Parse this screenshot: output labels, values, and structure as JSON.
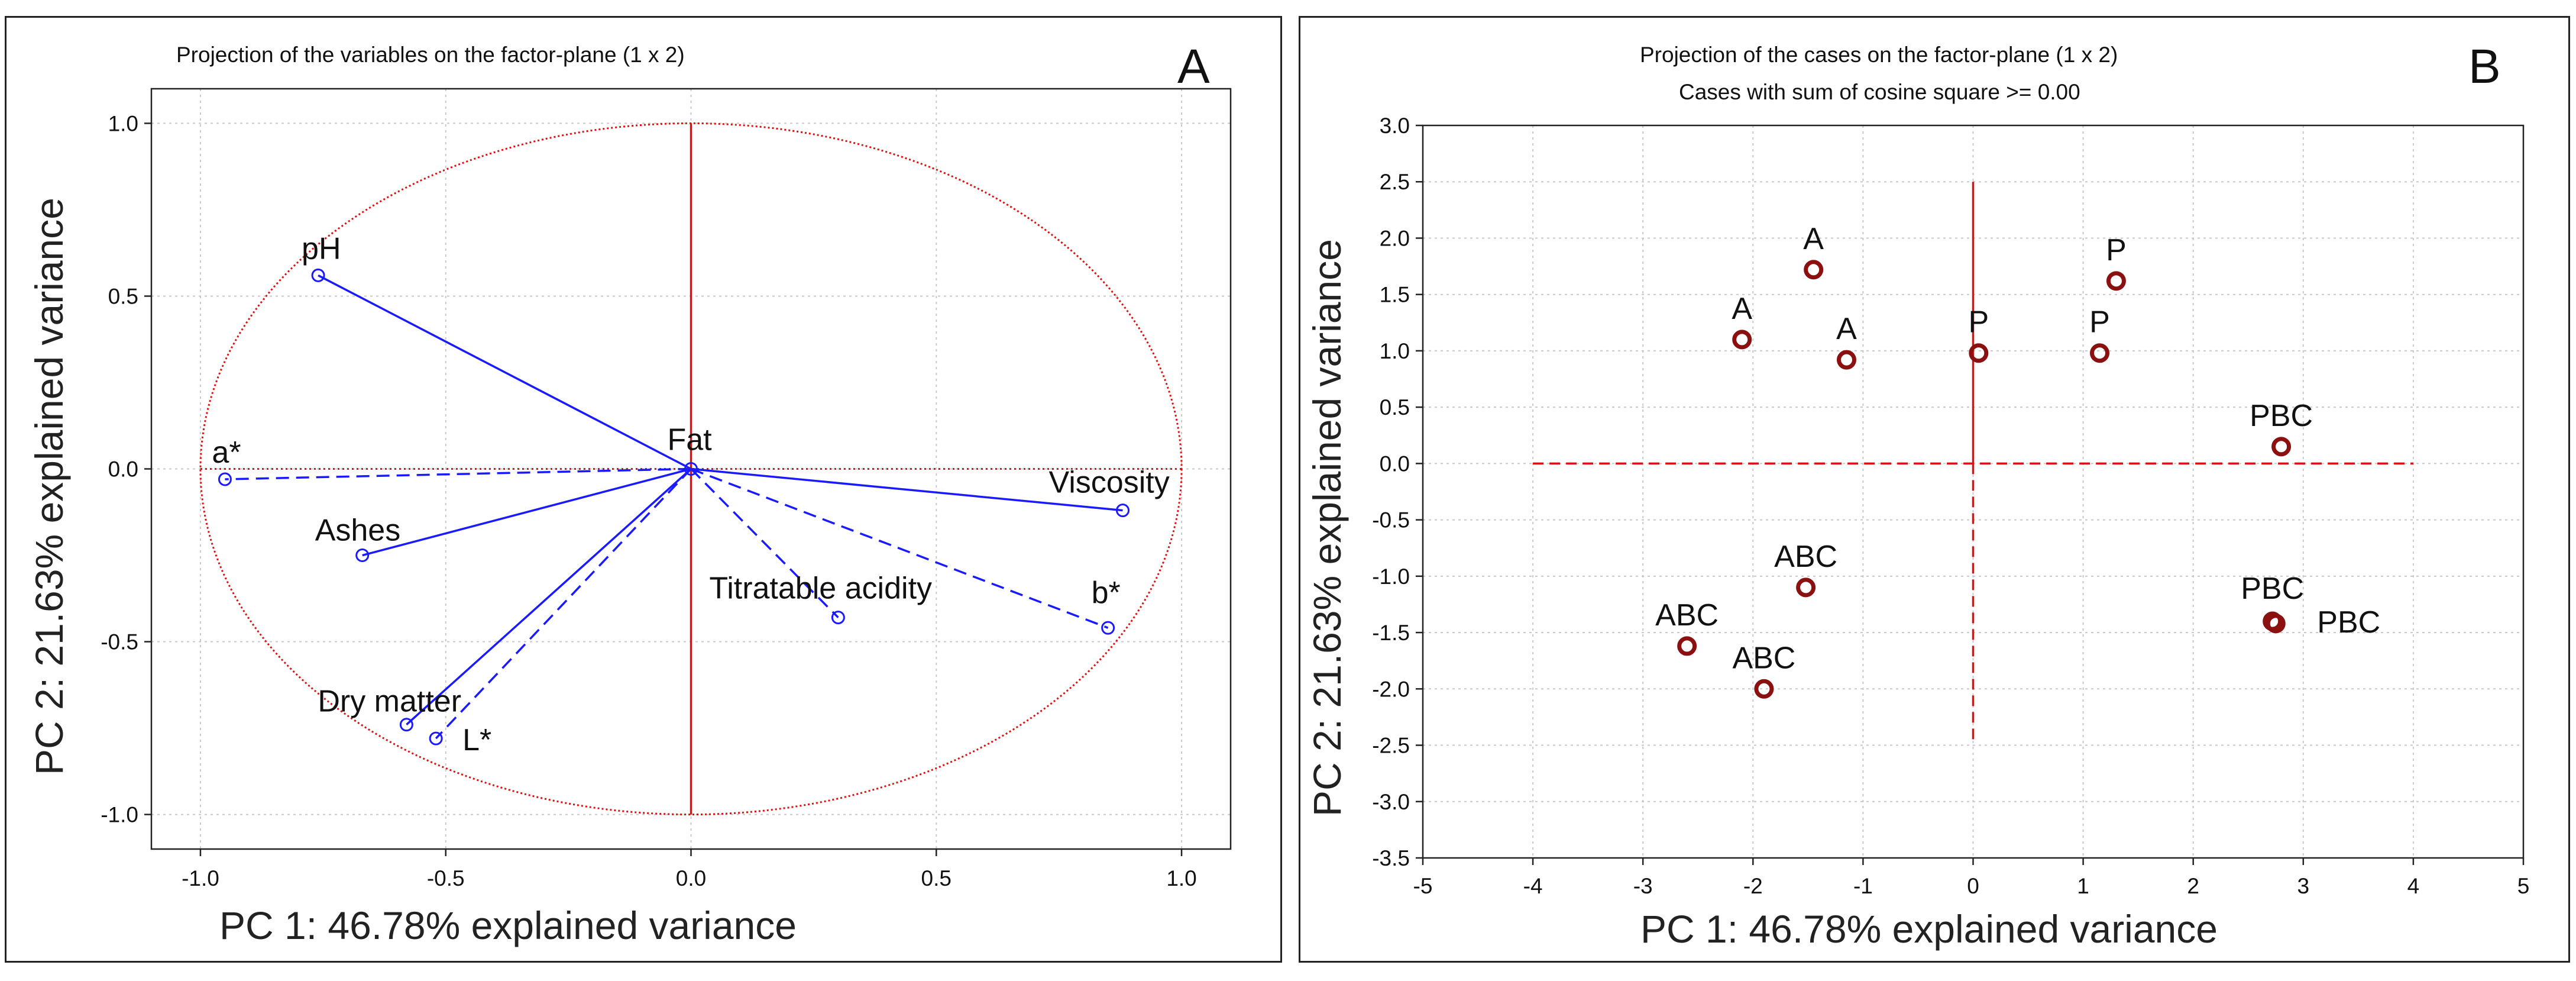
{
  "panels": {
    "A": {
      "letter": "A",
      "title": "Projection of the variables on the factor-plane (1 x 2)",
      "xlabel": "PC 1: 46.78% explained variance",
      "ylabel": "PC 2: 21.63% explained variance"
    },
    "B": {
      "letter": "B",
      "title": "Projection of the cases on the factor-plane (1 x 2)",
      "subtitle": "Cases with sum of cosine square >=  0.00",
      "xlabel": "PC 1: 46.78% explained variance",
      "ylabel": "PC 2: 21.63% explained variance"
    }
  },
  "chart_data": [
    {
      "type": "scatter",
      "id": "A",
      "title": "Projection of the variables on the factor-plane (1 x 2)",
      "xlabel": "PC 1: 46.78% explained variance",
      "ylabel": "PC 2: 21.63% explained variance",
      "xlim": [
        -1.1,
        1.1
      ],
      "ylim": [
        -1.1,
        1.1
      ],
      "xticks": [
        "-1.0",
        "-0.5",
        "0.0",
        "0.5",
        "1.0"
      ],
      "yticks": [
        "1.0",
        "0.5",
        "0.0",
        "-0.5",
        "-1.0"
      ],
      "grid": true,
      "unit_circle": true,
      "line_color": "#1a1aff",
      "circle_color": "#e01010",
      "variables": [
        {
          "name": "pH",
          "x": -0.76,
          "y": 0.56,
          "line": "solid"
        },
        {
          "name": "a*",
          "x": -0.95,
          "y": -0.03,
          "line": "dashed"
        },
        {
          "name": "Fat",
          "x": 0.0,
          "y": 0.0,
          "line": "none"
        },
        {
          "name": "Viscosity",
          "x": 0.88,
          "y": -0.12,
          "line": "solid"
        },
        {
          "name": "Ashes",
          "x": -0.67,
          "y": -0.25,
          "line": "solid"
        },
        {
          "name": "Titratable acidity",
          "x": 0.3,
          "y": -0.43,
          "line": "dashed"
        },
        {
          "name": "b*",
          "x": 0.85,
          "y": -0.46,
          "line": "dashed"
        },
        {
          "name": "Dry matter",
          "x": -0.58,
          "y": -0.74,
          "line": "solid"
        },
        {
          "name": "L*",
          "x": -0.52,
          "y": -0.78,
          "line": "dashed"
        }
      ]
    },
    {
      "type": "scatter",
      "id": "B",
      "title": "Projection of the cases on the factor-plane (1 x 2)",
      "subtitle": "Cases with sum of cosine square >=  0.00",
      "xlabel": "PC 1: 46.78% explained variance",
      "ylabel": "PC 2: 21.63% explained variance",
      "xlim": [
        -5,
        5
      ],
      "ylim": [
        -3.5,
        3.0
      ],
      "xticks": [
        "-5",
        "-4",
        "-3",
        "-2",
        "-1",
        "0",
        "1",
        "2",
        "3",
        "4",
        "5"
      ],
      "yticks": [
        "3.0",
        "2.5",
        "2.0",
        "1.5",
        "1.0",
        "0.5",
        "0.0",
        "-0.5",
        "-1.0",
        "-1.5",
        "-2.0",
        "-2.5",
        "-3.0",
        "-3.5"
      ],
      "grid": true,
      "marker_color": "#8b1010",
      "axis_color": "#e01010",
      "points": [
        {
          "label": "A",
          "x": -1.45,
          "y": 1.72
        },
        {
          "label": "A",
          "x": -2.1,
          "y": 1.1
        },
        {
          "label": "A",
          "x": -1.15,
          "y": 0.92
        },
        {
          "label": "P",
          "x": 0.05,
          "y": 0.98
        },
        {
          "label": "P",
          "x": 1.15,
          "y": 0.98
        },
        {
          "label": "P",
          "x": 1.3,
          "y": 1.62
        },
        {
          "label": "PBC",
          "x": 2.8,
          "y": 0.15
        },
        {
          "label": "PBC",
          "x": 2.72,
          "y": -1.4
        },
        {
          "label": "PBC",
          "x": 2.75,
          "y": -1.42
        },
        {
          "label": "ABC",
          "x": -1.52,
          "y": -1.1
        },
        {
          "label": "ABC",
          "x": -2.6,
          "y": -1.62
        },
        {
          "label": "ABC",
          "x": -1.9,
          "y": -2.0
        }
      ]
    }
  ]
}
